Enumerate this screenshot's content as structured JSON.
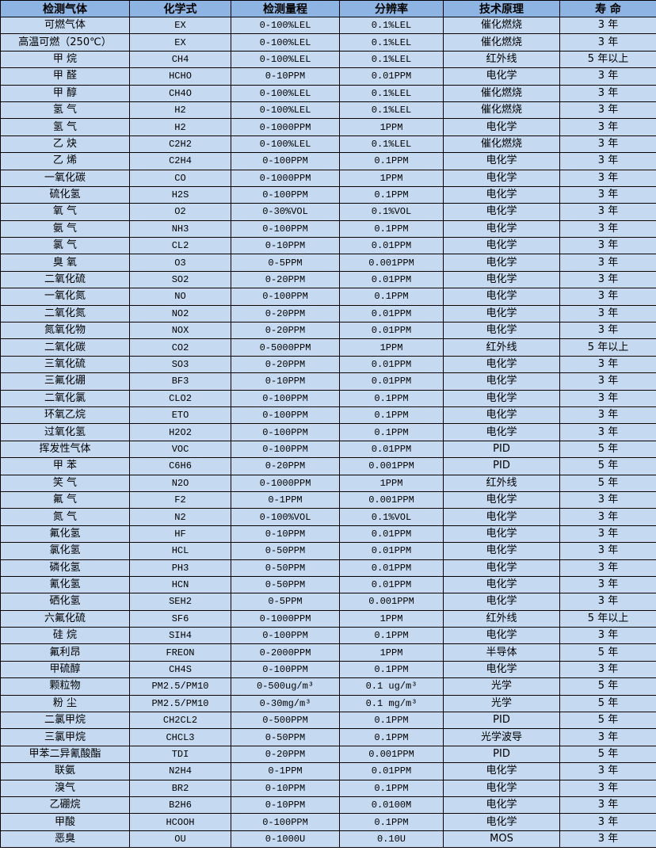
{
  "colors": {
    "header_bg": "#8db4e2",
    "row_bg": "#c5d9f1",
    "border": "#000000"
  },
  "headers": [
    "检测气体",
    "化学式",
    "检测量程",
    "分辨率",
    "技术原理",
    "寿 命"
  ],
  "rows": [
    [
      "可燃气体",
      "EX",
      "0-100%LEL",
      "0.1%LEL",
      "催化燃烧",
      "3 年"
    ],
    [
      "高温可燃（250℃）",
      "EX",
      "0-100%LEL",
      "0.1%LEL",
      "催化燃烧",
      "3 年"
    ],
    [
      "甲 烷",
      "CH4",
      "0-100%LEL",
      "0.1%LEL",
      "红外线",
      "5 年以上"
    ],
    [
      "甲 醛",
      "HCHO",
      "0-10PPM",
      "0.01PPM",
      "电化学",
      "3 年"
    ],
    [
      "甲 醇",
      "CH4O",
      "0-100%LEL",
      "0.1%LEL",
      "催化燃烧",
      "3 年"
    ],
    [
      "氢 气",
      "H2",
      "0-100%LEL",
      "0.1%LEL",
      "催化燃烧",
      "3 年"
    ],
    [
      "氢 气",
      "H2",
      "0-1000PPM",
      "1PPM",
      "电化学",
      "3 年"
    ],
    [
      "乙 炔",
      "C2H2",
      "0-100%LEL",
      "0.1%LEL",
      "催化燃烧",
      "3 年"
    ],
    [
      "乙 烯",
      "C2H4",
      "0-100PPM",
      "0.1PPM",
      "电化学",
      "3 年"
    ],
    [
      "一氧化碳",
      "CO",
      "0-1000PPM",
      "1PPM",
      "电化学",
      "3 年"
    ],
    [
      "硫化氢",
      "H2S",
      "0-100PPM",
      "0.1PPM",
      "电化学",
      "3 年"
    ],
    [
      "氧 气",
      "O2",
      "0-30%VOL",
      "0.1%VOL",
      "电化学",
      "3 年"
    ],
    [
      "氨 气",
      "NH3",
      "0-100PPM",
      "0.1PPM",
      "电化学",
      "3 年"
    ],
    [
      "氯 气",
      "CL2",
      "0-10PPM",
      "0.01PPM",
      "电化学",
      "3 年"
    ],
    [
      "臭 氧",
      "O3",
      "0-5PPM",
      "0.001PPM",
      "电化学",
      "3 年"
    ],
    [
      "二氧化硫",
      "SO2",
      "0-20PPM",
      "0.01PPM",
      "电化学",
      "3 年"
    ],
    [
      "一氧化氮",
      "NO",
      "0-100PPM",
      "0.1PPM",
      "电化学",
      "3 年"
    ],
    [
      "二氧化氮",
      "NO2",
      "0-20PPM",
      "0.01PPM",
      "电化学",
      "3 年"
    ],
    [
      "氮氧化物",
      "NOX",
      "0-20PPM",
      "0.01PPM",
      "电化学",
      "3 年"
    ],
    [
      "二氧化碳",
      "CO2",
      "0-5000PPM",
      "1PPM",
      "红外线",
      "5 年以上"
    ],
    [
      "三氧化硫",
      "SO3",
      "0-20PPM",
      "0.01PPM",
      "电化学",
      "3 年"
    ],
    [
      "三氟化硼",
      "BF3",
      "0-10PPM",
      "0.01PPM",
      "电化学",
      "3 年"
    ],
    [
      "二氧化氯",
      "CLO2",
      "0-100PPM",
      "0.1PPM",
      "电化学",
      "3 年"
    ],
    [
      "环氧乙烷",
      "ETO",
      "0-100PPM",
      "0.1PPM",
      "电化学",
      "3 年"
    ],
    [
      "过氧化氢",
      "H2O2",
      "0-100PPM",
      "0.1PPM",
      "电化学",
      "3 年"
    ],
    [
      "挥发性气体",
      "VOC",
      "0-100PPM",
      "0.01PPM",
      "PID",
      "5 年"
    ],
    [
      "甲 苯",
      "C6H6",
      "0-20PPM",
      "0.001PPM",
      "PID",
      "5 年"
    ],
    [
      "笑 气",
      "N2O",
      "0-1000PPM",
      "1PPM",
      "红外线",
      "5 年"
    ],
    [
      "氟 气",
      "F2",
      "0-1PPM",
      "0.001PPM",
      "电化学",
      "3 年"
    ],
    [
      "氮 气",
      "N2",
      "0-100%VOL",
      "0.1%VOL",
      "电化学",
      "3 年"
    ],
    [
      "氟化氢",
      "HF",
      "0-10PPM",
      "0.01PPM",
      "电化学",
      "3 年"
    ],
    [
      "氯化氢",
      "HCL",
      "0-50PPM",
      "0.01PPM",
      "电化学",
      "3 年"
    ],
    [
      "磷化氢",
      "PH3",
      "0-50PPM",
      "0.01PPM",
      "电化学",
      "3 年"
    ],
    [
      "氰化氢",
      "HCN",
      "0-50PPM",
      "0.01PPM",
      "电化学",
      "3 年"
    ],
    [
      "硒化氢",
      "SEH2",
      "0-5PPM",
      "0.001PPM",
      "电化学",
      "3 年"
    ],
    [
      "六氟化硫",
      "SF6",
      "0-1000PPM",
      "1PPM",
      "红外线",
      "5 年以上"
    ],
    [
      "硅 烷",
      "SIH4",
      "0-100PPM",
      "0.1PPM",
      "电化学",
      "3 年"
    ],
    [
      "氟利昂",
      "FREON",
      "0-2000PPM",
      "1PPM",
      "半导体",
      "5 年"
    ],
    [
      "甲硫醇",
      "CH4S",
      "0-100PPM",
      "0.1PPM",
      "电化学",
      "3 年"
    ],
    [
      "颗粒物",
      "PM2.5/PM10",
      "0-500ug/m³",
      "0.1 ug/m³",
      "光学",
      "5 年"
    ],
    [
      "粉 尘",
      "PM2.5/PM10",
      "0-30mg/m³",
      "0.1 mg/m³",
      "光学",
      "5 年"
    ],
    [
      "二氯甲烷",
      "CH2CL2",
      "0-500PPM",
      "0.1PPM",
      "PID",
      "5 年"
    ],
    [
      "三氯甲烷",
      "CHCL3",
      "0-50PPM",
      "0.1PPM",
      "光学波导",
      "3 年"
    ],
    [
      "甲苯二异氰酸酯",
      "TDI",
      "0-20PPM",
      "0.001PPM",
      "PID",
      "5 年"
    ],
    [
      "联氨",
      "N2H4",
      "0-1PPM",
      "0.01PPM",
      "电化学",
      "3 年"
    ],
    [
      "溴气",
      "BR2",
      "0-10PPM",
      "0.1PPM",
      "电化学",
      "3 年"
    ],
    [
      "乙硼烷",
      "B2H6",
      "0-10PPM",
      "0.0100M",
      "电化学",
      "3 年"
    ],
    [
      "甲酸",
      "HCOOH",
      "0-100PPM",
      "0.1PPM",
      "电化学",
      "3 年"
    ],
    [
      "恶臭",
      "OU",
      "0-1000U",
      "0.10U",
      "MOS",
      "3 年"
    ]
  ]
}
